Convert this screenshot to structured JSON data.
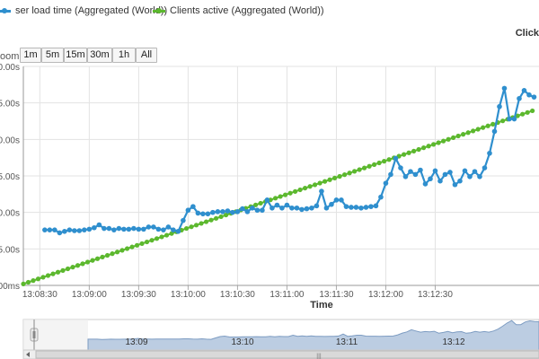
{
  "legend": {
    "series1_label": "ser load time (Aggregated (World))",
    "series2_label": "Clients active (Aggregated (World))"
  },
  "click_hint": "Click",
  "zoom": {
    "label": "oom",
    "buttons": [
      "1m",
      "5m",
      "15m",
      "30m",
      "1h",
      "All"
    ]
  },
  "navigator": {
    "labels": [
      "13:09",
      "13:10",
      "13:11",
      "13:12"
    ],
    "scroll_grip": "|||"
  },
  "colors": {
    "series1": "#2f8fce",
    "series2": "#5cb82e",
    "navigator_fill": "#a5bcd8",
    "grid": "#e3e3e3"
  },
  "chart_data": {
    "type": "line",
    "title": "",
    "xlabel": "Time",
    "ylabel": "",
    "x_ticks": [
      "13:08:30",
      "13:09:00",
      "13:09:30",
      "13:10:00",
      "13:10:30",
      "13:11:00",
      "13:11:30",
      "13:12:00",
      "13:12:30"
    ],
    "y_ticks": [
      "00ms",
      "5.00s",
      "0.00s",
      "5.00s",
      "0.00s",
      "5.00s",
      "0.00s"
    ],
    "series": [
      {
        "name": "ser load time (Aggregated (World))",
        "color": "#2f8fce",
        "points": [
          [
            "13:08:33",
            0.76
          ],
          [
            "13:08:36",
            0.76
          ],
          [
            "13:08:39",
            0.76
          ],
          [
            "13:08:42",
            0.72
          ],
          [
            "13:08:45",
            0.74
          ],
          [
            "13:08:48",
            0.76
          ],
          [
            "13:08:51",
            0.75
          ],
          [
            "13:08:54",
            0.75
          ],
          [
            "13:08:57",
            0.76
          ],
          [
            "13:09:00",
            0.77
          ],
          [
            "13:09:03",
            0.79
          ],
          [
            "13:09:06",
            0.83
          ],
          [
            "13:09:09",
            0.78
          ],
          [
            "13:09:12",
            0.78
          ],
          [
            "13:09:15",
            0.76
          ],
          [
            "13:09:18",
            0.78
          ],
          [
            "13:09:21",
            0.77
          ],
          [
            "13:09:24",
            0.77
          ],
          [
            "13:09:27",
            0.78
          ],
          [
            "13:09:30",
            0.77
          ],
          [
            "13:09:33",
            0.77
          ],
          [
            "13:09:36",
            0.8
          ],
          [
            "13:09:39",
            0.8
          ],
          [
            "13:09:42",
            0.77
          ],
          [
            "13:09:45",
            0.76
          ],
          [
            "13:09:48",
            0.8
          ],
          [
            "13:09:51",
            0.76
          ],
          [
            "13:09:54",
            0.74
          ],
          [
            "13:09:57",
            0.89
          ],
          [
            "13:10:00",
            1.03
          ],
          [
            "13:10:03",
            1.08
          ],
          [
            "13:10:06",
            0.99
          ],
          [
            "13:10:09",
            0.98
          ],
          [
            "13:10:12",
            0.98
          ],
          [
            "13:10:15",
            1.0
          ],
          [
            "13:10:18",
            1.01
          ],
          [
            "13:10:21",
            1.01
          ],
          [
            "13:10:24",
            1.02
          ],
          [
            "13:10:27",
            1.0
          ],
          [
            "13:10:30",
            1.01
          ],
          [
            "13:10:33",
            1.05
          ],
          [
            "13:10:36",
            1.01
          ],
          [
            "13:10:39",
            1.06
          ],
          [
            "13:10:42",
            1.03
          ],
          [
            "13:10:45",
            1.03
          ],
          [
            "13:10:48",
            1.17
          ],
          [
            "13:10:51",
            1.06
          ],
          [
            "13:10:54",
            1.1
          ],
          [
            "13:10:57",
            1.06
          ],
          [
            "13:11:00",
            1.1
          ],
          [
            "13:11:03",
            1.06
          ],
          [
            "13:11:06",
            1.06
          ],
          [
            "13:11:09",
            1.04
          ],
          [
            "13:11:12",
            1.05
          ],
          [
            "13:11:15",
            1.06
          ],
          [
            "13:11:18",
            1.09
          ],
          [
            "13:11:21",
            1.29
          ],
          [
            "13:11:24",
            1.06
          ],
          [
            "13:11:27",
            1.11
          ],
          [
            "13:11:30",
            1.17
          ],
          [
            "13:11:33",
            1.17
          ],
          [
            "13:11:36",
            1.08
          ],
          [
            "13:11:39",
            1.07
          ],
          [
            "13:11:42",
            1.07
          ],
          [
            "13:11:45",
            1.06
          ],
          [
            "13:11:48",
            1.07
          ],
          [
            "13:11:51",
            1.08
          ],
          [
            "13:11:54",
            1.09
          ],
          [
            "13:11:57",
            1.21
          ],
          [
            "13:12:00",
            1.4
          ],
          [
            "13:12:03",
            1.52
          ],
          [
            "13:12:06",
            1.74
          ],
          [
            "13:12:09",
            1.61
          ],
          [
            "13:12:12",
            1.49
          ],
          [
            "13:12:15",
            1.56
          ],
          [
            "13:12:18",
            1.52
          ],
          [
            "13:12:21",
            1.58
          ],
          [
            "13:12:24",
            1.39
          ],
          [
            "13:12:27",
            1.46
          ],
          [
            "13:12:30",
            1.57
          ],
          [
            "13:12:33",
            1.43
          ],
          [
            "13:12:36",
            1.52
          ],
          [
            "13:12:39",
            1.55
          ],
          [
            "13:12:42",
            1.38
          ],
          [
            "13:12:45",
            1.43
          ],
          [
            "13:12:48",
            1.57
          ],
          [
            "13:12:51",
            1.49
          ],
          [
            "13:12:54",
            1.56
          ],
          [
            "13:12:57",
            1.49
          ],
          [
            "13:13:00",
            1.61
          ],
          [
            "13:13:03",
            1.81
          ],
          [
            "13:13:06",
            2.11
          ],
          [
            "13:13:09",
            2.45
          ],
          [
            "13:13:12",
            2.7
          ],
          [
            "13:13:15",
            2.28
          ],
          [
            "13:13:18",
            2.28
          ],
          [
            "13:13:21",
            2.56
          ],
          [
            "13:13:24",
            2.67
          ],
          [
            "13:13:27",
            2.61
          ],
          [
            "13:13:30",
            2.58
          ]
        ]
      },
      {
        "name": "Clients active (Aggregated (World))",
        "color": "#5cb82e",
        "points_linear_from": [
          "13:08:20",
          0.02
        ],
        "points_linear_to": [
          "13:13:30",
          2.4
        ]
      }
    ],
    "grid": true,
    "legend_placement": "top"
  }
}
